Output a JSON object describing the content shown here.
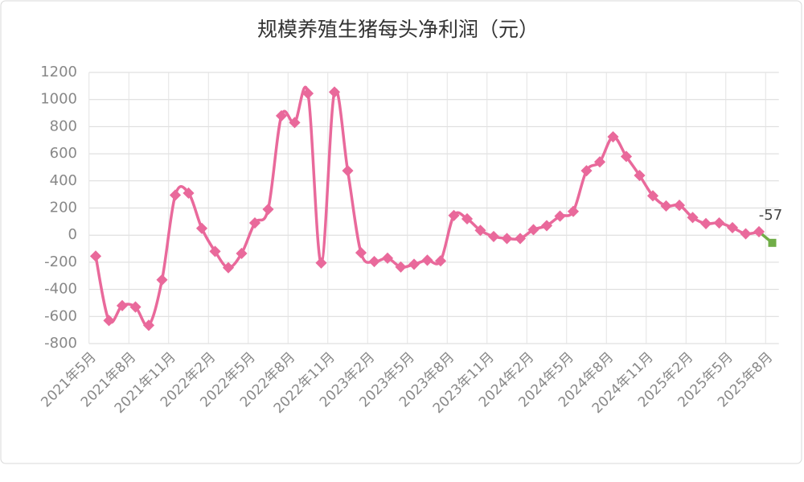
{
  "chart_data": {
    "type": "line",
    "title": "规模养殖生猪每头净利润（元）",
    "categories": [
      "2021年5月",
      null,
      null,
      "2021年8月",
      null,
      null,
      "2021年11月",
      null,
      null,
      "2022年2月",
      null,
      null,
      "2022年5月",
      null,
      null,
      "2022年8月",
      null,
      null,
      "2022年11月",
      null,
      null,
      "2023年2月",
      null,
      null,
      "2023年5月",
      null,
      null,
      "2023年8月",
      null,
      null,
      "2023年11月",
      null,
      null,
      "2024年2月",
      null,
      null,
      "2024年5月",
      null,
      null,
      "2024年8月",
      null,
      null,
      "2024年11月",
      null,
      null,
      "2025年2月",
      null,
      null,
      "2025年5月",
      null,
      null,
      "2025年8月"
    ],
    "series": [
      {
        "name": "规模养殖生猪每头净利润",
        "color": "#e9699b",
        "values": [
          -155,
          -630,
          -520,
          -530,
          -665,
          -330,
          295,
          310,
          50,
          -120,
          -240,
          -135,
          90,
          190,
          880,
          830,
          1045,
          -205,
          1055,
          475,
          -130,
          -195,
          -170,
          -235,
          -215,
          -185,
          -190,
          145,
          120,
          35,
          -10,
          -25,
          -25,
          40,
          70,
          140,
          175,
          475,
          540,
          725,
          580,
          440,
          290,
          215,
          220,
          130,
          85,
          90,
          55,
          10,
          25,
          -57
        ],
        "value_labels": [
          null,
          null,
          null,
          null,
          null,
          null,
          null,
          null,
          null,
          null,
          null,
          null,
          null,
          null,
          null,
          null,
          null,
          null,
          null,
          null,
          null,
          null,
          null,
          null,
          null,
          null,
          null,
          null,
          null,
          null,
          null,
          null,
          null,
          null,
          null,
          null,
          null,
          null,
          null,
          null,
          null,
          null,
          null,
          null,
          null,
          null,
          null,
          null,
          null,
          null,
          null,
          "-57"
        ],
        "last_point_color": "#70ad47"
      }
    ],
    "ylim": [
      -800,
      1200
    ],
    "yticks": [
      -800,
      -600,
      -400,
      -200,
      0,
      200,
      400,
      600,
      800,
      1000,
      1200
    ],
    "grid": true
  }
}
